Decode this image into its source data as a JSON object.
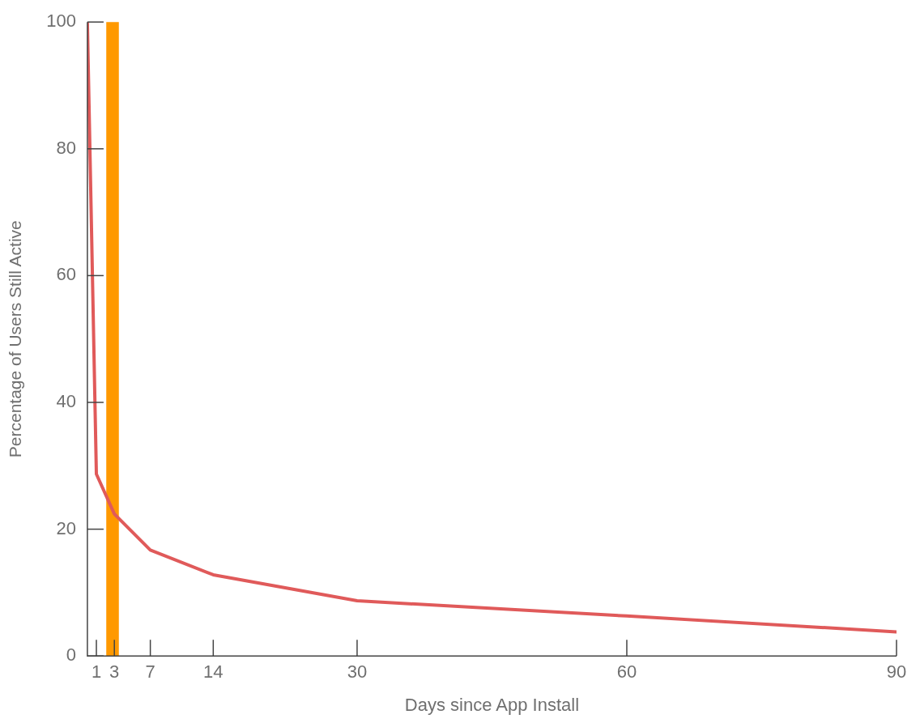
{
  "chart_data": {
    "type": "line",
    "xlabel": "Days since App Install",
    "ylabel": "Percentage of Users Still Active",
    "x": [
      0,
      1,
      3,
      7,
      14,
      30,
      60,
      90
    ],
    "series": [
      {
        "color": "#e05a5a",
        "values": [
          100,
          28.7,
          22.4,
          16.7,
          12.8,
          8.7,
          6.3,
          3.8
        ]
      }
    ],
    "xlim": [
      0,
      90
    ],
    "xticks": [
      1,
      3,
      7,
      14,
      30,
      60,
      90
    ],
    "ylim": [
      0,
      100
    ],
    "yticks": [
      0,
      20,
      40,
      60,
      80,
      100
    ],
    "bands": [
      {
        "axis": "x",
        "from": 2.1,
        "to": 3.5,
        "color": "#ff9900"
      }
    ],
    "grid": false,
    "legend": false,
    "marker": "none",
    "line_style": "solid"
  }
}
